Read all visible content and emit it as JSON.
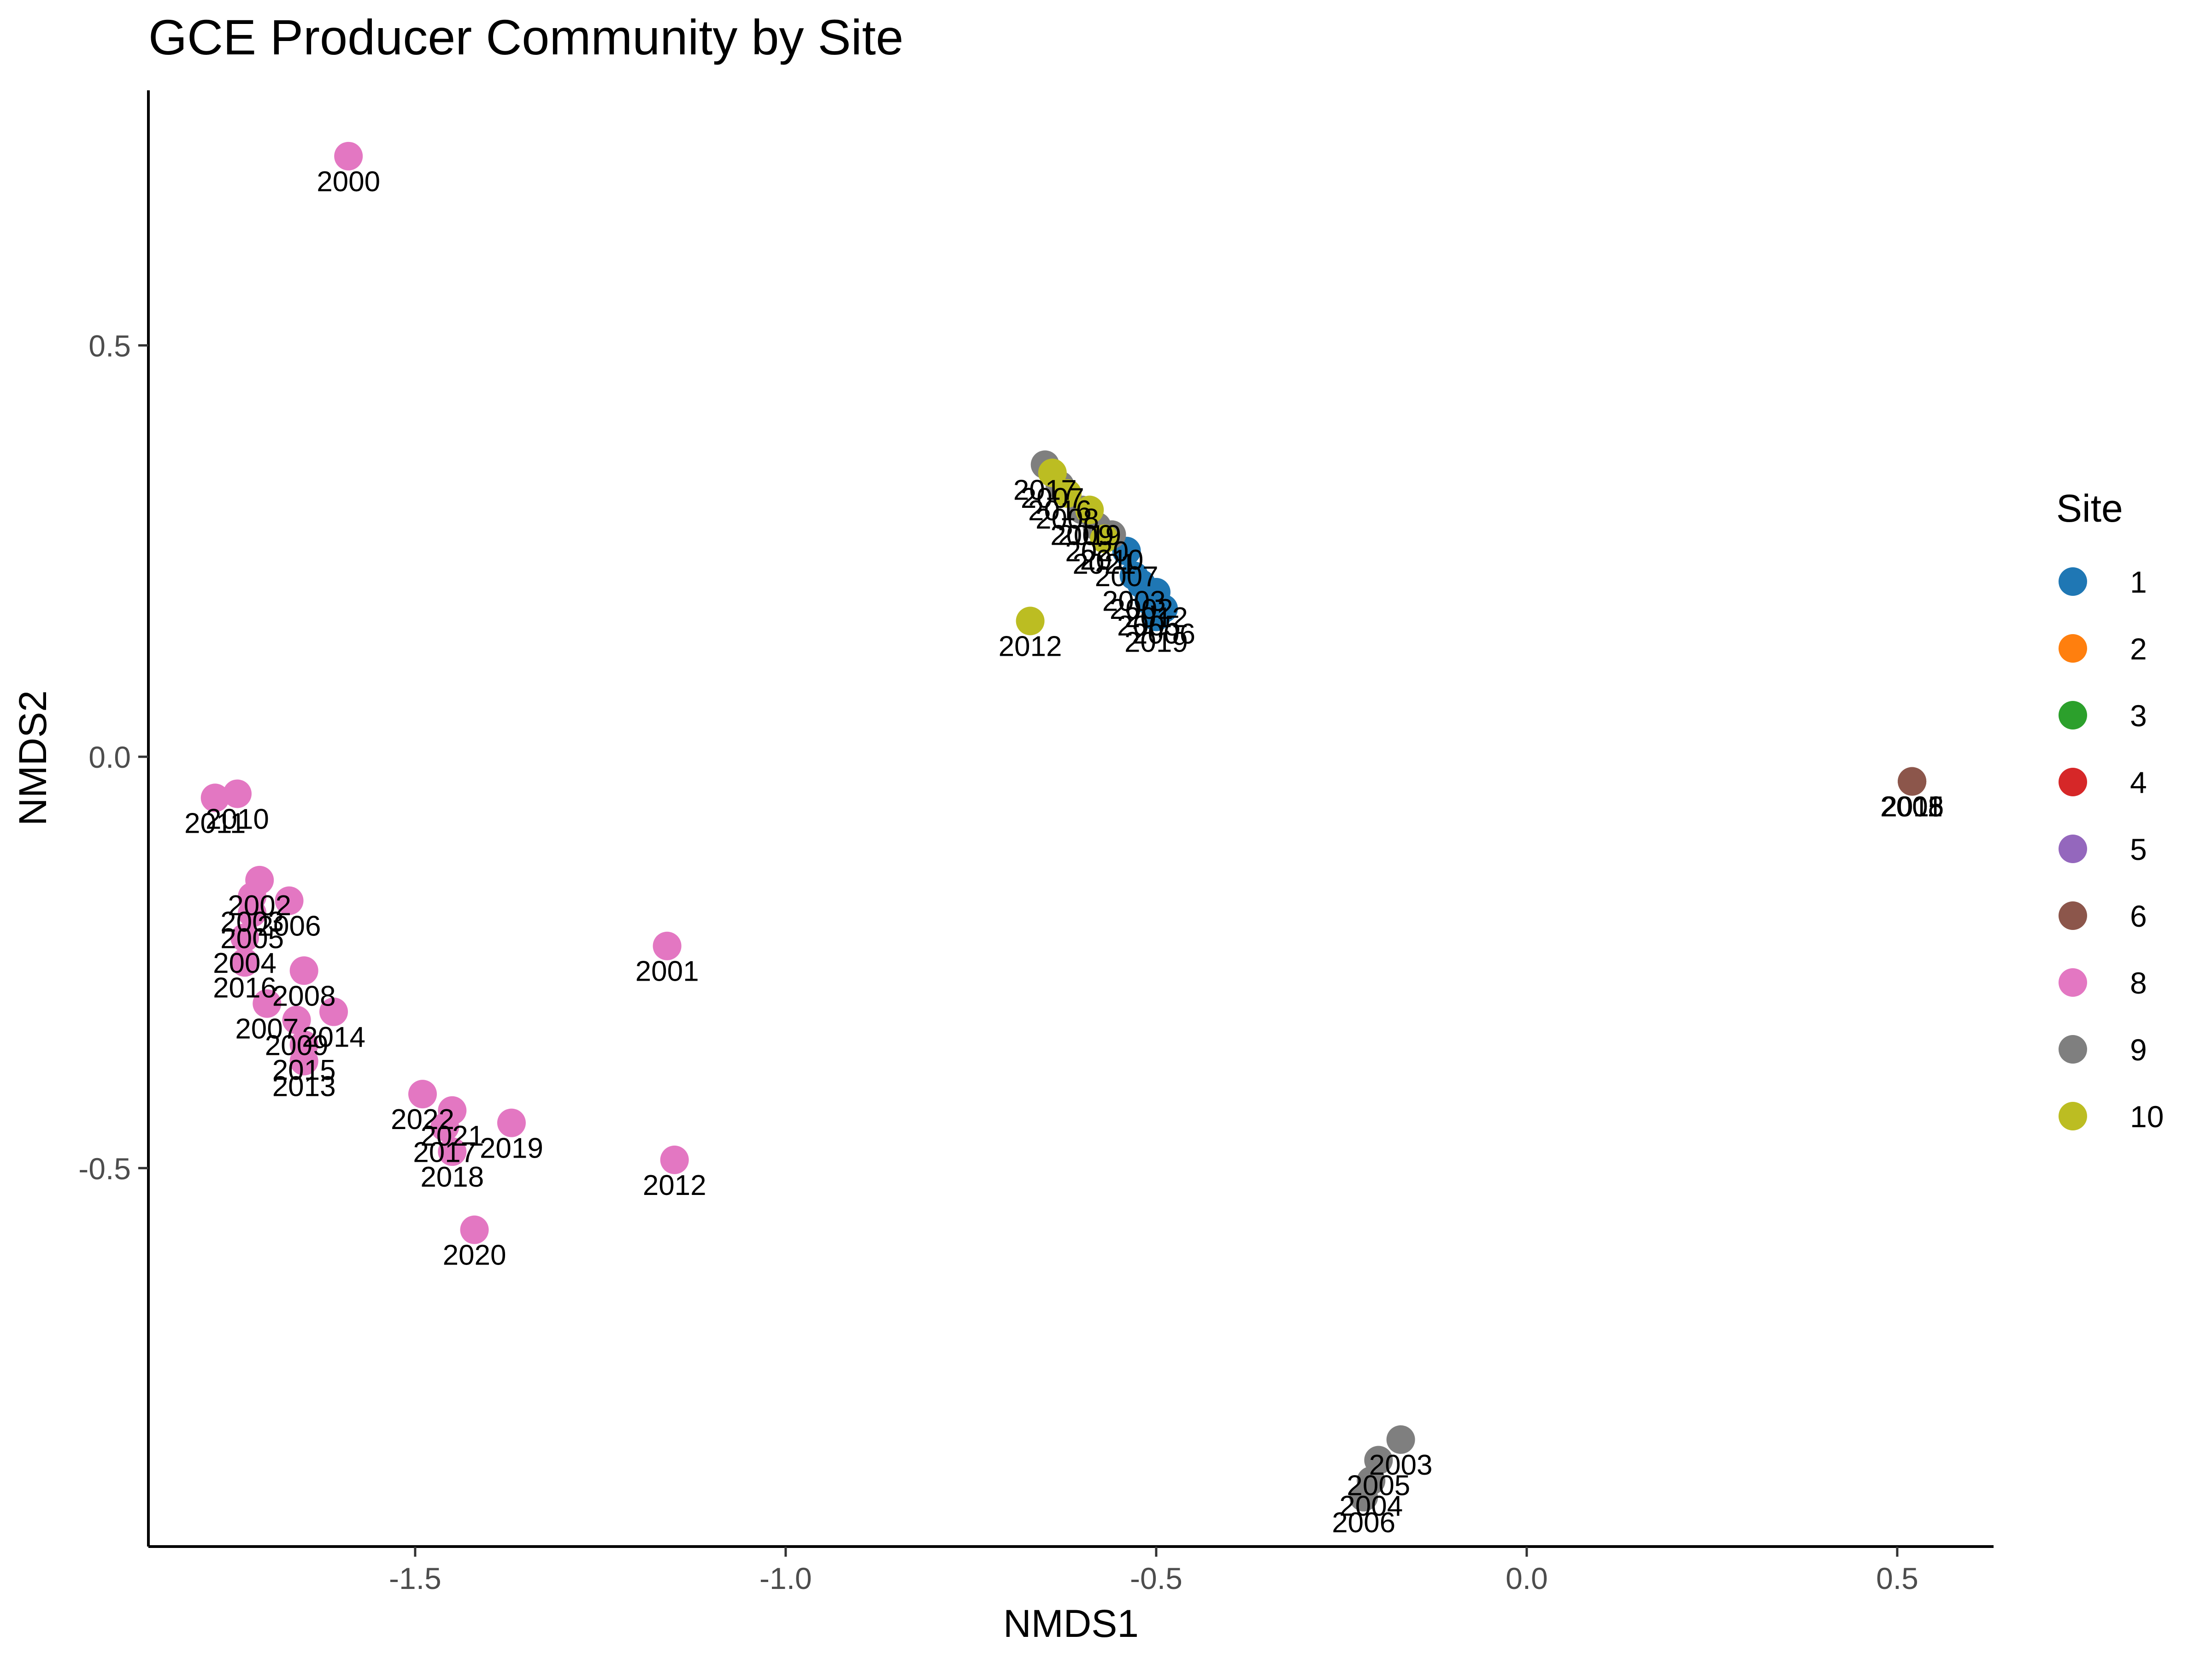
{
  "chart_data": {
    "type": "scatter",
    "title": "GCE Producer Community by Site",
    "xlabel": "NMDS1",
    "ylabel": "NMDS2",
    "xlim": [
      -1.86,
      0.63
    ],
    "ylim": [
      -0.96,
      0.81
    ],
    "xticks": [
      -1.5,
      -1.0,
      -0.5,
      0.0,
      0.5
    ],
    "xtick_labels": [
      "-1.5",
      "-1.0",
      "-0.5",
      "0.0",
      "0.5"
    ],
    "yticks": [
      -0.5,
      0.0,
      0.5
    ],
    "ytick_labels": [
      "-0.5",
      "0.0",
      "0.5"
    ],
    "grid": false,
    "legend": {
      "title": "Site",
      "position": "right",
      "entries": [
        {
          "label": "1",
          "color": "#1f77b4"
        },
        {
          "label": "2",
          "color": "#ff7f0e"
        },
        {
          "label": "3",
          "color": "#2ca02c"
        },
        {
          "label": "4",
          "color": "#d62728"
        },
        {
          "label": "5",
          "color": "#9467bd"
        },
        {
          "label": "6",
          "color": "#8c564b"
        },
        {
          "label": "8",
          "color": "#e377c2"
        },
        {
          "label": "9",
          "color": "#7f7f7f"
        },
        {
          "label": "10",
          "color": "#bcbd22"
        }
      ]
    },
    "series": [
      {
        "name": "1",
        "color": "#1f77b4",
        "points": [
          {
            "x": -0.54,
            "y": 0.25,
            "label": "2007"
          },
          {
            "x": -0.53,
            "y": 0.22,
            "label": "2003"
          },
          {
            "x": -0.52,
            "y": 0.21,
            "label": "2002"
          },
          {
            "x": -0.5,
            "y": 0.2,
            "label": "2012"
          },
          {
            "x": -0.51,
            "y": 0.19,
            "label": "2005"
          },
          {
            "x": -0.49,
            "y": 0.18,
            "label": "2006"
          },
          {
            "x": -0.5,
            "y": 0.17,
            "label": "2019"
          }
        ]
      },
      {
        "name": "6",
        "color": "#8c564b",
        "points": [
          {
            "x": 0.52,
            "y": -0.03,
            "label": "2011"
          },
          {
            "x": 0.52,
            "y": -0.03,
            "label": "2008"
          },
          {
            "x": 0.52,
            "y": -0.03,
            "label": "2005"
          }
        ]
      },
      {
        "name": "8",
        "color": "#e377c2",
        "points": [
          {
            "x": -1.59,
            "y": 0.73,
            "label": "2000"
          },
          {
            "x": -1.77,
            "y": -0.05,
            "label": "2011"
          },
          {
            "x": -1.74,
            "y": -0.045,
            "label": "2010"
          },
          {
            "x": -1.71,
            "y": -0.15,
            "label": "2002"
          },
          {
            "x": -1.72,
            "y": -0.17,
            "label": "2003"
          },
          {
            "x": -1.67,
            "y": -0.175,
            "label": "2006"
          },
          {
            "x": -1.72,
            "y": -0.19,
            "label": "2005"
          },
          {
            "x": -1.73,
            "y": -0.22,
            "label": "2004"
          },
          {
            "x": -1.73,
            "y": -0.25,
            "label": "2016"
          },
          {
            "x": -1.65,
            "y": -0.26,
            "label": "2008"
          },
          {
            "x": -1.7,
            "y": -0.3,
            "label": "2007"
          },
          {
            "x": -1.61,
            "y": -0.31,
            "label": "2014"
          },
          {
            "x": -1.66,
            "y": -0.32,
            "label": "2009"
          },
          {
            "x": -1.65,
            "y": -0.35,
            "label": "2015"
          },
          {
            "x": -1.65,
            "y": -0.37,
            "label": "2013"
          },
          {
            "x": -1.16,
            "y": -0.23,
            "label": "2001"
          },
          {
            "x": -1.49,
            "y": -0.41,
            "label": "2022"
          },
          {
            "x": -1.45,
            "y": -0.43,
            "label": "2021"
          },
          {
            "x": -1.46,
            "y": -0.45,
            "label": "2017"
          },
          {
            "x": -1.37,
            "y": -0.445,
            "label": "2019"
          },
          {
            "x": -1.45,
            "y": -0.48,
            "label": "2018"
          },
          {
            "x": -1.15,
            "y": -0.49,
            "label": "2012"
          },
          {
            "x": -1.42,
            "y": -0.575,
            "label": "2020"
          }
        ]
      },
      {
        "name": "9",
        "color": "#7f7f7f",
        "points": [
          {
            "x": -0.65,
            "y": 0.355,
            "label": "2017"
          },
          {
            "x": -0.63,
            "y": 0.33,
            "label": "2016"
          },
          {
            "x": -0.6,
            "y": 0.3,
            "label": "2009"
          },
          {
            "x": -0.58,
            "y": 0.28,
            "label": "2020"
          },
          {
            "x": -0.56,
            "y": 0.27,
            "label": "2010"
          },
          {
            "x": -0.17,
            "y": -0.83,
            "label": "2003"
          },
          {
            "x": -0.2,
            "y": -0.855,
            "label": "2005"
          },
          {
            "x": -0.21,
            "y": -0.88,
            "label": "2004"
          },
          {
            "x": -0.22,
            "y": -0.9,
            "label": "2006"
          }
        ]
      },
      {
        "name": "10",
        "color": "#bcbd22",
        "points": [
          {
            "x": -0.64,
            "y": 0.345,
            "label": "2007"
          },
          {
            "x": -0.62,
            "y": 0.32,
            "label": "2008"
          },
          {
            "x": -0.59,
            "y": 0.3,
            "label": "2019"
          },
          {
            "x": -0.57,
            "y": 0.265,
            "label": "2021"
          },
          {
            "x": -0.67,
            "y": 0.165,
            "label": "2012"
          }
        ]
      }
    ]
  }
}
